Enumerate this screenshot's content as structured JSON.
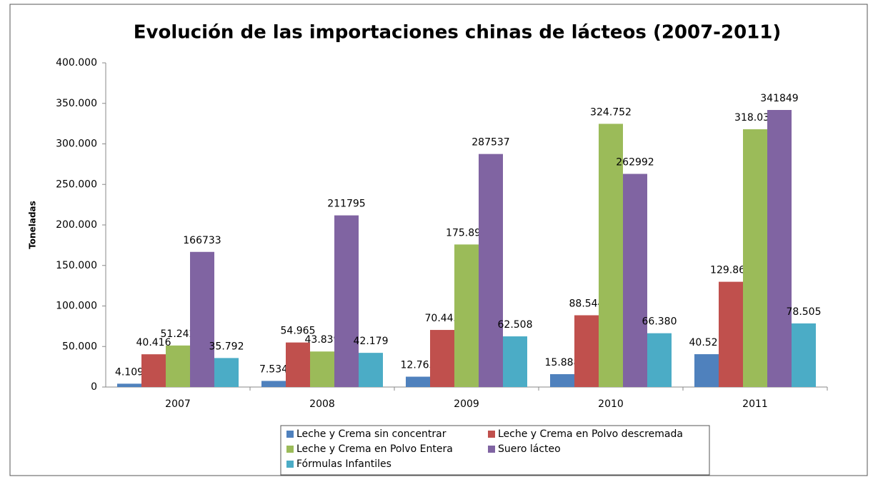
{
  "chart_data": {
    "type": "bar",
    "title": "Evolución de las importaciones chinas de lácteos (2007-2011)",
    "y_label": "Toneladas",
    "categories": [
      "2007",
      "2008",
      "2009",
      "2010",
      "2011"
    ],
    "series": [
      {
        "name": "Leche y Crema sin concentrar",
        "color": "#4f81bd",
        "values": [
          4109,
          7534,
          12763,
          15888,
          40521
        ],
        "value_labels": [
          "4.109",
          "7.534",
          "12.763",
          "15.888",
          "40.521"
        ]
      },
      {
        "name": "Leche y Crema en Polvo descremada",
        "color": "#c0504d",
        "values": [
          40416,
          54965,
          70443,
          88544,
          129869
        ],
        "value_labels": [
          "40.416",
          "54.965",
          "70.443",
          "88.544",
          "129.869"
        ]
      },
      {
        "name": "Leche y Crema en Polvo Entera",
        "color": "#9bbb59",
        "values": [
          51242,
          43839,
          175893,
          324752,
          318033
        ],
        "value_labels": [
          "51.242",
          "43.839",
          "175.893",
          "324.752",
          "318.033"
        ]
      },
      {
        "name": "Suero lácteo",
        "color": "#8064a2",
        "values": [
          166733,
          211795,
          287537,
          262992,
          341849
        ]
      },
      {
        "name": "Fórmulas Infantiles",
        "color": "#4bacc6",
        "values": [
          35792,
          42179,
          62508,
          66380,
          78505
        ],
        "value_labels": [
          "35.792",
          "42.179",
          "62.508",
          "66.380",
          "78.505"
        ]
      }
    ],
    "ylim": [
      0,
      400000
    ],
    "yticks": [
      0,
      {
        "value": 50000,
        "label": "50.000"
      },
      {
        "value": 100000,
        "label": "100.000"
      },
      {
        "value": 150000,
        "label": "150.000"
      },
      {
        "value": 200000,
        "label": "200.000"
      },
      {
        "value": 250000,
        "label": "250.000"
      },
      {
        "value": 300000,
        "label": "300.000"
      },
      {
        "value": 350000,
        "label": "350.000"
      },
      {
        "value": 400000,
        "label": "400.000"
      }
    ],
    "legend": "bottom"
  }
}
